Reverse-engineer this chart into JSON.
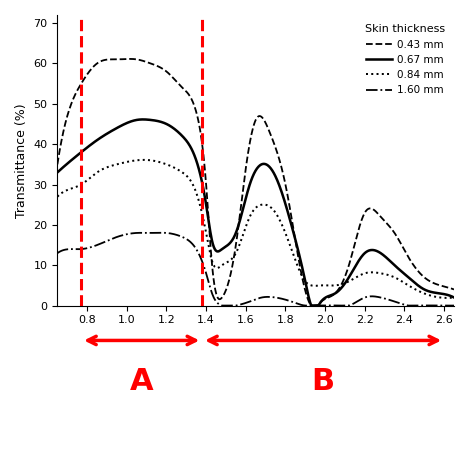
{
  "ylabel": "Transmittance (%)",
  "xlim": [
    0.65,
    2.65
  ],
  "ylim": [
    0,
    72
  ],
  "xticks": [
    0.8,
    1.0,
    1.2,
    1.4,
    1.6,
    1.8,
    2.0,
    2.2,
    2.4,
    2.6
  ],
  "yticks": [
    0,
    10,
    20,
    30,
    40,
    50,
    60,
    70
  ],
  "legend_title": "Skin thickness",
  "legend_labels": [
    "0.43 mm",
    "0.67 mm",
    "0.84 mm",
    "1.60 mm"
  ],
  "vline1_x": 0.77,
  "vline2_x": 1.38,
  "label_A": "A",
  "label_B": "B",
  "arrow_color": "#ff0000",
  "vline_color": "#ff0000",
  "background_color": "#ffffff",
  "curve_043": {
    "x": [
      0.65,
      0.72,
      0.77,
      0.85,
      0.95,
      1.05,
      1.12,
      1.2,
      1.28,
      1.35,
      1.4,
      1.43,
      1.48,
      1.55,
      1.6,
      1.65,
      1.72,
      1.8,
      1.88,
      1.93,
      1.98,
      2.05,
      2.12,
      2.2,
      2.28,
      2.35,
      2.42,
      2.5,
      2.58,
      2.65
    ],
    "y": [
      35,
      50,
      55,
      60,
      61,
      61,
      60,
      58,
      54,
      48,
      30,
      10,
      2,
      15,
      34,
      46,
      43,
      30,
      8,
      0,
      1,
      3,
      10,
      23,
      22,
      18,
      12,
      7,
      5,
      4
    ]
  },
  "curve_067": {
    "x": [
      0.65,
      0.72,
      0.77,
      0.85,
      0.95,
      1.05,
      1.12,
      1.2,
      1.28,
      1.35,
      1.4,
      1.43,
      1.48,
      1.55,
      1.62,
      1.68,
      1.75,
      1.83,
      1.9,
      1.93,
      1.98,
      2.05,
      2.12,
      2.2,
      2.28,
      2.35,
      2.42,
      2.5,
      2.58,
      2.65
    ],
    "y": [
      33,
      36,
      38,
      41,
      44,
      46,
      46,
      45,
      42,
      36,
      25,
      16,
      14,
      18,
      30,
      35,
      32,
      20,
      6,
      0,
      1,
      3,
      7,
      13,
      13,
      10,
      7,
      4,
      3,
      2
    ]
  },
  "curve_084": {
    "x": [
      0.65,
      0.72,
      0.77,
      0.85,
      0.95,
      1.05,
      1.12,
      1.2,
      1.28,
      1.35,
      1.4,
      1.43,
      1.48,
      1.55,
      1.62,
      1.68,
      1.75,
      1.83,
      1.9,
      1.93,
      1.98,
      2.05,
      2.12,
      2.2,
      2.28,
      2.35,
      2.42,
      2.5,
      2.58,
      2.65
    ],
    "y": [
      27,
      29,
      30,
      33,
      35,
      36,
      36,
      35,
      33,
      28,
      18,
      11,
      10,
      13,
      22,
      25,
      23,
      14,
      6,
      5,
      5,
      5,
      6,
      8,
      8,
      7,
      5,
      3,
      2,
      2
    ]
  },
  "curve_160": {
    "x": [
      0.65,
      0.72,
      0.77,
      0.85,
      0.95,
      1.05,
      1.12,
      1.2,
      1.28,
      1.35,
      1.4,
      1.43,
      1.48,
      1.55,
      1.62,
      1.68,
      1.75,
      1.83,
      1.9,
      1.93,
      1.98,
      2.05,
      2.12,
      2.2,
      2.28,
      2.35,
      2.42,
      2.5,
      2.58,
      2.65
    ],
    "y": [
      13,
      14,
      14,
      15,
      17,
      18,
      18,
      18,
      17,
      14,
      8,
      3,
      0,
      0,
      1,
      2,
      2,
      1,
      0,
      0,
      0,
      0,
      0,
      2,
      2,
      1,
      0,
      0,
      0,
      0
    ]
  }
}
